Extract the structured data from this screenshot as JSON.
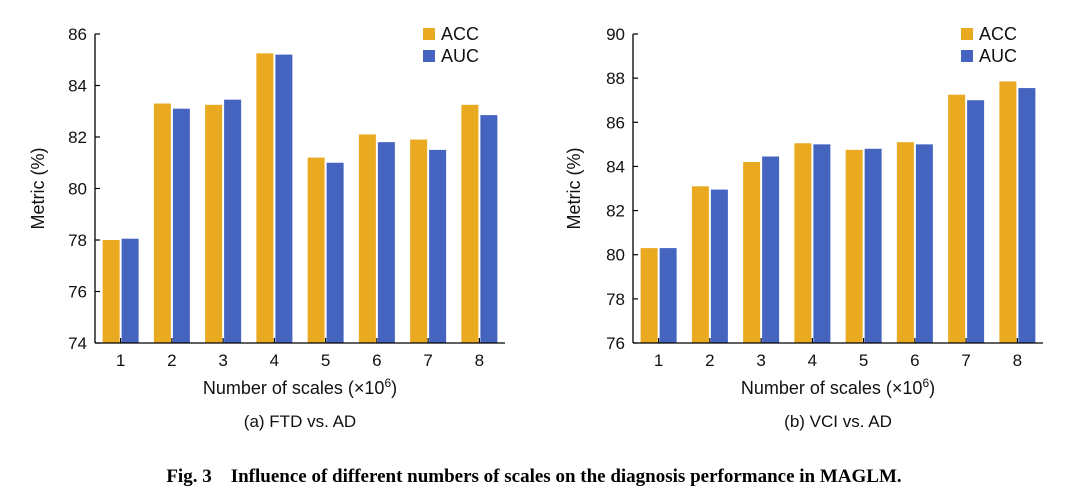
{
  "caption": {
    "label": "Fig. 3",
    "text": "Influence of different numbers of scales on the diagnosis performance in MAGLM."
  },
  "chart_data": [
    {
      "type": "bar",
      "subcaption": "(a) FTD vs. AD",
      "xlabel": "Number of scales (×10",
      "xlabel_sup": "6",
      "xlabel_end": ")",
      "ylabel": "Metric (%)",
      "categories": [
        "1",
        "2",
        "3",
        "4",
        "5",
        "6",
        "7",
        "8"
      ],
      "ylim": [
        74,
        86
      ],
      "yticks": [
        74,
        76,
        78,
        80,
        82,
        84,
        86
      ],
      "legend_position": "top-right",
      "series": [
        {
          "name": "ACC",
          "color": "#e9a921",
          "values": [
            78.0,
            83.3,
            83.25,
            85.25,
            81.2,
            82.1,
            81.9,
            83.25
          ]
        },
        {
          "name": "AUC",
          "color": "#4564c0",
          "values": [
            78.05,
            83.1,
            83.45,
            85.2,
            81.0,
            81.8,
            81.5,
            82.85
          ]
        }
      ]
    },
    {
      "type": "bar",
      "subcaption": "(b) VCI vs. AD",
      "xlabel": "Number of scales (×10",
      "xlabel_sup": "6",
      "xlabel_end": ")",
      "ylabel": "Metric (%)",
      "categories": [
        "1",
        "2",
        "3",
        "4",
        "5",
        "6",
        "7",
        "8"
      ],
      "ylim": [
        76,
        90
      ],
      "yticks": [
        76,
        78,
        80,
        82,
        84,
        86,
        88,
        90
      ],
      "legend_position": "top-right",
      "series": [
        {
          "name": "ACC",
          "color": "#e9a921",
          "values": [
            80.3,
            83.1,
            84.2,
            85.05,
            84.75,
            85.1,
            87.25,
            87.85
          ]
        },
        {
          "name": "AUC",
          "color": "#4564c0",
          "values": [
            80.3,
            82.95,
            84.45,
            85.0,
            84.8,
            85.0,
            87.0,
            87.55
          ]
        }
      ]
    }
  ]
}
